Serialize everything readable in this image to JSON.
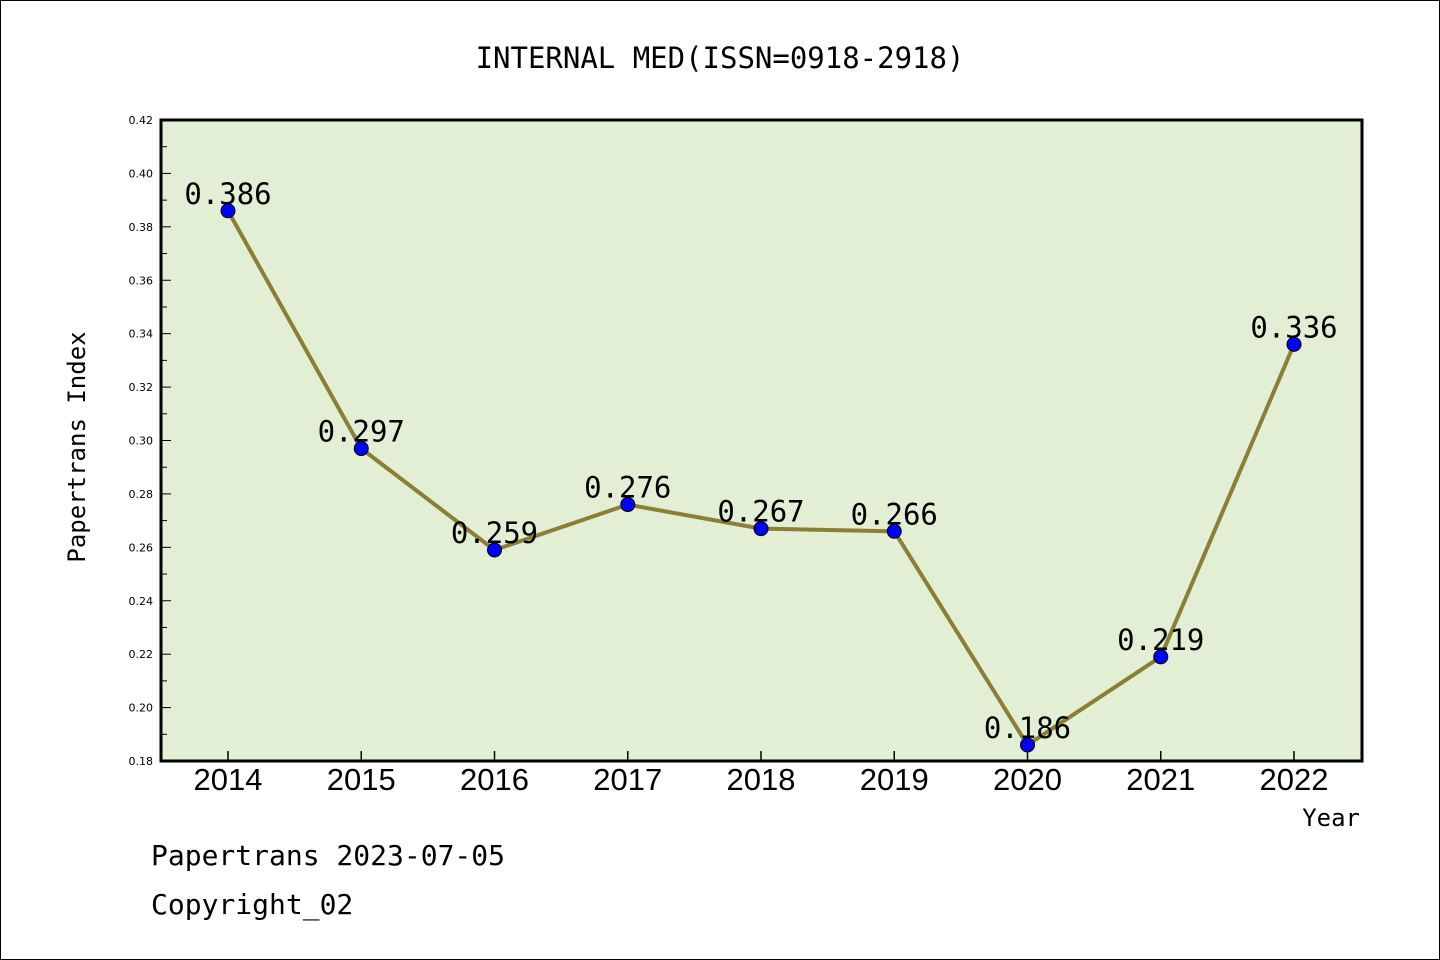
{
  "chart_data": {
    "type": "line",
    "title": "INTERNAL MED(ISSN=0918-2918)",
    "xlabel": "Year",
    "ylabel": "Papertrans Index",
    "x": [
      "2014",
      "2015",
      "2016",
      "2017",
      "2018",
      "2019",
      "2020",
      "2021",
      "2022"
    ],
    "series": [
      {
        "values": [
          0.386,
          0.297,
          0.259,
          0.276,
          0.267,
          0.266,
          0.186,
          0.219,
          0.336
        ],
        "data_labels": [
          "0.386",
          "0.297",
          "0.259",
          "0.276",
          "0.267",
          "0.266",
          "0.186",
          "0.219",
          "0.336"
        ]
      }
    ],
    "ylim": [
      0.18,
      0.42
    ],
    "y_ticks": [
      "0.18",
      "0.20",
      "0.22",
      "0.24",
      "0.26",
      "0.28",
      "0.30",
      "0.32",
      "0.34",
      "0.36",
      "0.38",
      "0.40",
      "0.42"
    ],
    "grid": false,
    "colors": {
      "plot_background": "#e2efd5",
      "line": "#8b7e35",
      "marker": "#0000ff"
    }
  },
  "footer": {
    "line1": "Papertrans 2023-07-05",
    "line2": "Copyright_02"
  }
}
